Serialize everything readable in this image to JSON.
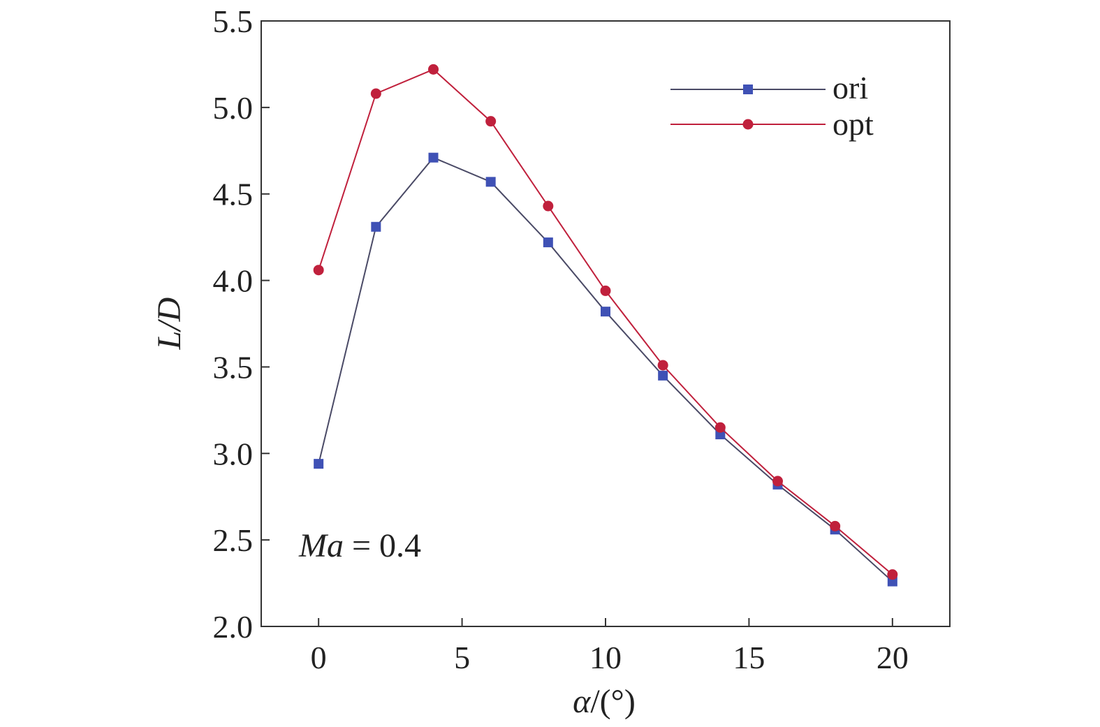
{
  "chart_data": {
    "type": "line",
    "x": [
      0,
      2,
      4,
      6,
      8,
      10,
      12,
      14,
      16,
      18,
      20
    ],
    "series": [
      {
        "name": "ori",
        "values": [
          2.94,
          4.31,
          4.71,
          4.57,
          4.22,
          3.82,
          3.45,
          3.11,
          2.82,
          2.56,
          2.26
        ],
        "color": "#3f51b5",
        "line_color": "#4a4a66",
        "marker": "square"
      },
      {
        "name": "opt",
        "values": [
          4.06,
          5.08,
          5.22,
          4.92,
          4.43,
          3.94,
          3.51,
          3.15,
          2.84,
          2.58,
          2.3
        ],
        "color": "#c0203c",
        "line_color": "#c0203c",
        "marker": "circle"
      }
    ],
    "xlim": [
      -2,
      22
    ],
    "ylim": [
      2.0,
      5.5
    ],
    "xticks": [
      "0",
      "5",
      "10",
      "15",
      "20"
    ],
    "yticks": [
      "2.0",
      "2.5",
      "3.0",
      "3.5",
      "4.0",
      "4.5",
      "5.0",
      "5.5"
    ],
    "xlabel": "α/(°)",
    "ylabel": "L/D",
    "annotation": {
      "italic": "Ma",
      "rest": " = 0.4"
    },
    "legend_position": "top-right",
    "grid": false
  }
}
